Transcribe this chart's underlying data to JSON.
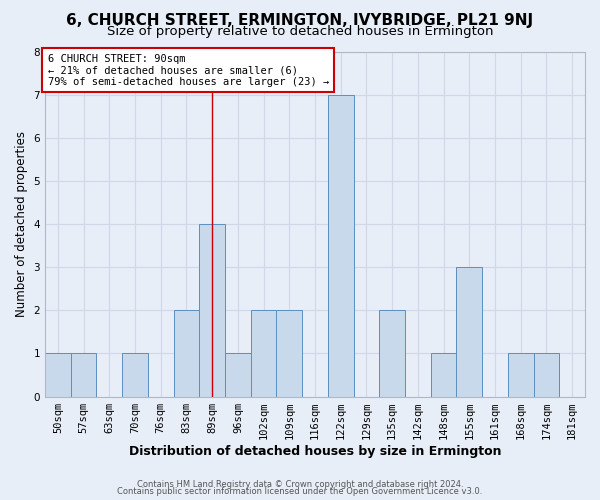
{
  "title": "6, CHURCH STREET, ERMINGTON, IVYBRIDGE, PL21 9NJ",
  "subtitle": "Size of property relative to detached houses in Ermington",
  "xlabel": "Distribution of detached houses by size in Ermington",
  "ylabel": "Number of detached properties",
  "categories": [
    "50sqm",
    "57sqm",
    "63sqm",
    "70sqm",
    "76sqm",
    "83sqm",
    "89sqm",
    "96sqm",
    "102sqm",
    "109sqm",
    "116sqm",
    "122sqm",
    "129sqm",
    "135sqm",
    "142sqm",
    "148sqm",
    "155sqm",
    "161sqm",
    "168sqm",
    "174sqm",
    "181sqm"
  ],
  "values": [
    1,
    1,
    0,
    1,
    0,
    2,
    4,
    1,
    2,
    2,
    0,
    7,
    0,
    2,
    0,
    1,
    3,
    0,
    1,
    1,
    0
  ],
  "bar_color": "#c9d9ec",
  "bar_edge_color": "#5a8fc0",
  "property_line_index": 6,
  "property_label": "6 CHURCH STREET: 90sqm",
  "annotation_line1": "← 21% of detached houses are smaller (6)",
  "annotation_line2": "79% of semi-detached houses are larger (23) →",
  "annotation_box_edge_color": "#cc0000",
  "ylim": [
    0,
    8
  ],
  "yticks": [
    0,
    1,
    2,
    3,
    4,
    5,
    6,
    7,
    8
  ],
  "grid_color": "#d0d8e8",
  "bg_color": "#e8eef8",
  "footer_line1": "Contains HM Land Registry data © Crown copyright and database right 2024.",
  "footer_line2": "Contains public sector information licensed under the Open Government Licence v3.0.",
  "title_fontsize": 11,
  "subtitle_fontsize": 9.5,
  "xlabel_fontsize": 9,
  "ylabel_fontsize": 8.5,
  "tick_fontsize": 7.5,
  "annot_fontsize": 7.5,
  "footer_fontsize": 6
}
